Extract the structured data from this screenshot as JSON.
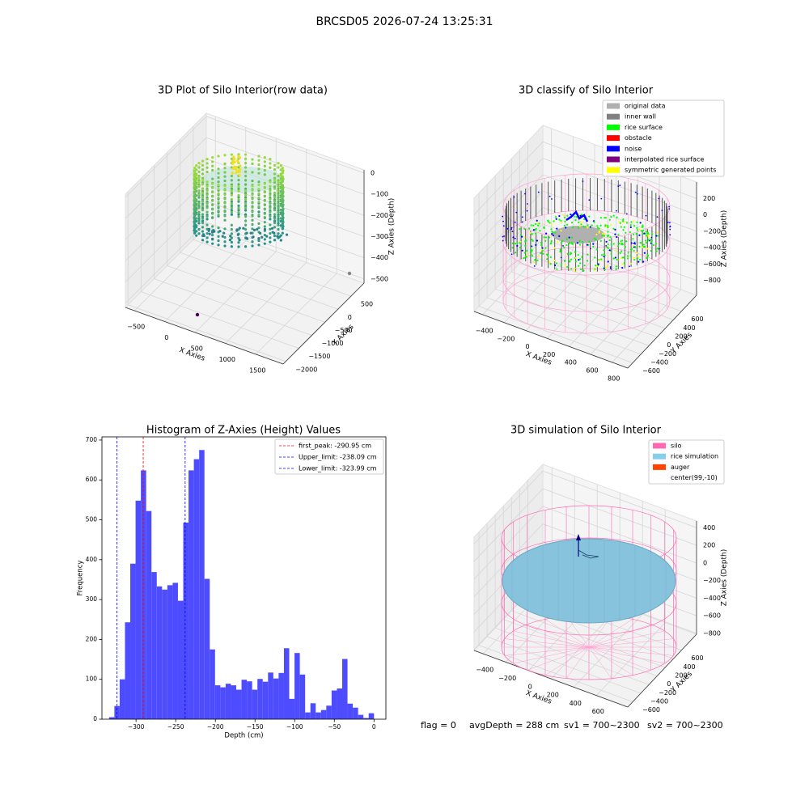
{
  "suptitle": "BRCSD05 2026-07-24 13:25:31",
  "footer": [
    "flag = 0",
    "avgDepth = 288 cm",
    "sv1 = 700~2300",
    "sv2 = 700~2300"
  ],
  "chart_data": [
    {
      "type": "scatter3d",
      "title": "3D Plot of Silo Interior(row data)",
      "xlabel": "X Axies",
      "ylabel": "Y Axies",
      "zlabel": "Z Axies (Depth)",
      "xlim": [
        -650,
        1950
      ],
      "ylim": [
        -2100,
        1000
      ],
      "zlim": [
        -520,
        15
      ],
      "xticks": [
        {
          "value": -500,
          "label": "−500"
        },
        0,
        500,
        1000,
        1500
      ],
      "yticks": [
        {
          "value": -2000,
          "label": "−2000"
        },
        {
          "value": -1500,
          "label": "−1500"
        },
        {
          "value": -1000,
          "label": "−1000"
        },
        {
          "value": -500,
          "label": "−500"
        },
        0,
        500
      ],
      "zticks": [
        {
          "value": -500,
          "label": "−500"
        },
        {
          "value": -400,
          "label": "−400"
        },
        {
          "value": -300,
          "label": "−300"
        },
        {
          "value": -200,
          "label": "−200"
        },
        {
          "value": -100,
          "label": "−100"
        },
        0
      ]
    },
    {
      "type": "scatter3d",
      "title": "3D classify of Silo Interior",
      "xlabel": "X Axies",
      "ylabel": "Y Axies",
      "zlabel": "Z Axies (Depth)",
      "xlim": [
        -480,
        945
      ],
      "ylim": [
        -720,
        970
      ],
      "zlim": [
        -980,
        400
      ],
      "xticks": [
        {
          "value": -400,
          "label": "−400"
        },
        {
          "value": -200,
          "label": "−200"
        },
        0,
        200,
        400,
        600,
        800
      ],
      "yticks": [
        {
          "value": -600,
          "label": "−600"
        },
        {
          "value": -400,
          "label": "−400"
        },
        {
          "value": -200,
          "label": "−200"
        },
        0,
        200,
        400,
        600
      ],
      "zticks": [
        {
          "value": -800,
          "label": "−800"
        },
        {
          "value": -600,
          "label": "−600"
        },
        {
          "value": -400,
          "label": "−400"
        },
        {
          "value": -200,
          "label": "−200"
        },
        0,
        200
      ],
      "legend": [
        {
          "name": "original data",
          "color": "#b0b0b0"
        },
        {
          "name": "inner wall",
          "color": "#808080"
        },
        {
          "name": "rice surface",
          "color": "#00ff00"
        },
        {
          "name": "obstacle",
          "color": "#ff0000"
        },
        {
          "name": "noise",
          "color": "#0000ff"
        },
        {
          "name": "interpolated rice surface",
          "color": "#800080"
        },
        {
          "name": "symmetric generated points",
          "color": "#ffff00"
        }
      ]
    },
    {
      "type": "histogram",
      "title": "Histogram of Z-Axies (Height) Values",
      "xlabel": "Depth (cm)",
      "ylabel": "Frequency",
      "color": "#4d4dff",
      "bins": [
        -334.0,
        -327.32,
        -320.64,
        -313.96,
        -307.28,
        -300.6,
        -293.92,
        -287.24,
        -280.56,
        -273.88,
        -267.2,
        -260.52,
        -253.84,
        -247.16,
        -240.48,
        -233.8,
        -227.12,
        -220.44,
        -213.76,
        -207.08,
        -200.4,
        -193.72,
        -187.04,
        -180.36,
        -173.68,
        -167.0,
        -160.32,
        -153.64,
        -146.96,
        -140.28,
        -133.6,
        -126.92,
        -120.24,
        -113.56,
        -106.88,
        -100.2,
        -93.52,
        -86.84,
        -80.16,
        -73.48,
        -66.8,
        -60.12,
        -53.44,
        -46.76,
        -40.08,
        -33.4,
        -26.72,
        -20.04,
        -13.36,
        -6.68,
        0.0
      ],
      "counts": [
        5,
        33,
        100,
        243,
        390,
        548,
        624,
        522,
        369,
        333,
        325,
        336,
        342,
        297,
        493,
        624,
        652,
        675,
        352,
        175,
        85,
        80,
        89,
        85,
        74,
        99,
        95,
        74,
        101,
        94,
        117,
        102,
        116,
        178,
        51,
        166,
        112,
        17,
        40,
        17,
        23,
        34,
        72,
        77,
        151,
        39,
        29,
        11,
        3,
        15
      ],
      "vlines": [
        {
          "name": "first_peak: -290.95 cm",
          "value": -290.95,
          "color": "#ff0000"
        },
        {
          "name": "Upper_limit: -238.09 cm",
          "value": -238.09,
          "color": "#0000ff"
        },
        {
          "name": "Lower_limit: -323.99 cm",
          "value": -323.99,
          "color": "#0000ff"
        }
      ],
      "xlim": [
        -343,
        15
      ],
      "ylim": [
        0,
        708
      ],
      "xticks": [
        {
          "value": -300,
          "label": "−300"
        },
        {
          "value": -250,
          "label": "−250"
        },
        {
          "value": -200,
          "label": "−200"
        },
        {
          "value": -150,
          "label": "−150"
        },
        {
          "value": -100,
          "label": "−100"
        },
        {
          "value": -50,
          "label": "−50"
        },
        0
      ],
      "yticks": [
        0,
        100,
        200,
        300,
        400,
        500,
        600,
        700
      ],
      "legend_position": "upper right"
    },
    {
      "type": "scatter3d",
      "title": "3D simulation of Silo Interior",
      "xlabel": "X Axies",
      "ylabel": "Y Axies",
      "zlabel": "Z Axies (Depth)",
      "xlim": [
        -480,
        877
      ],
      "ylim": [
        -720,
        970
      ],
      "zlim": [
        -810,
        476
      ],
      "xticks": [
        {
          "value": -400,
          "label": "−400"
        },
        {
          "value": -200,
          "label": "−200"
        },
        0,
        200,
        400,
        600
      ],
      "yticks": [
        {
          "value": -600,
          "label": "−600"
        },
        {
          "value": -400,
          "label": "−400"
        },
        {
          "value": -200,
          "label": "−200"
        },
        0,
        200,
        400,
        600
      ],
      "zticks": [
        {
          "value": -800,
          "label": "−800"
        },
        {
          "value": -600,
          "label": "−600"
        },
        {
          "value": -400,
          "label": "−400"
        },
        {
          "value": -200,
          "label": "−200"
        },
        0,
        200,
        400
      ],
      "legend": [
        {
          "name": "silo",
          "color": "#ff69b4"
        },
        {
          "name": "rice simulation",
          "color": "#87ceeb"
        },
        {
          "name": "auger",
          "color": "#ff4500"
        },
        {
          "name": "center(99,-10)",
          "color": "#ffffff"
        }
      ]
    }
  ]
}
